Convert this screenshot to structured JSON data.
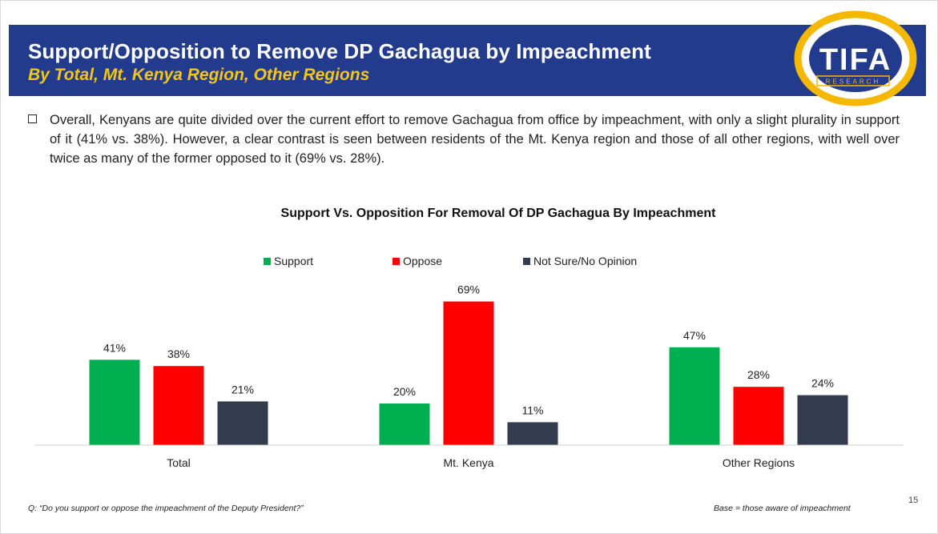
{
  "header": {
    "title": "Support/Opposition to Remove DP Gachagua by Impeachment",
    "subtitle": "By Total, Mt. Kenya Region, Other Regions"
  },
  "logo": {
    "text": "TIFA",
    "tagline": "RESEARCH"
  },
  "bullet": {
    "text": "Overall, Kenyans are quite divided over the current effort to remove Gachagua from office by impeachment, with only a slight plurality in support of it (41% vs. 38%).  However, a clear contrast is seen between residents of the Mt. Kenya region and those of all other regions, with well over twice as many of the former opposed to it (69% vs. 28%)."
  },
  "chart_data": {
    "type": "bar",
    "title": "Support Vs. Opposition For Removal Of DP Gachagua By Impeachment",
    "categories": [
      "Total",
      "Mt. Kenya",
      "Other Regions"
    ],
    "series": [
      {
        "name": "Support",
        "values": [
          41,
          20,
          47
        ],
        "color": "#00b050"
      },
      {
        "name": "Oppose",
        "values": [
          38,
          69,
          28
        ],
        "color": "#ff0000"
      },
      {
        "name": "Not Sure/No Opinion",
        "values": [
          21,
          11,
          24
        ],
        "color": "#323c4e"
      }
    ],
    "ylim": [
      0,
      75
    ],
    "value_suffix": "%",
    "legend": "top",
    "grid": false
  },
  "footer": {
    "question": "Q: “Do you support or oppose the impeachment of the Deputy President?”",
    "base": "Base = those aware of impeachment",
    "page": "15"
  }
}
